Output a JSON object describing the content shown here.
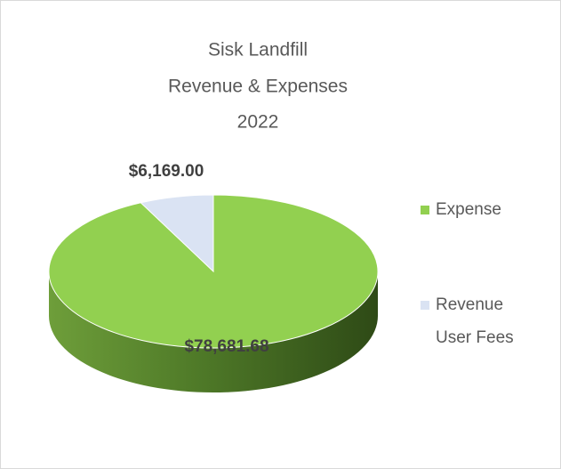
{
  "chart_data": {
    "type": "pie3d",
    "title": [
      "Sisk Landfill",
      "Revenue & Expenses",
      "2022"
    ],
    "categories": [
      "Expense",
      "Revenue User Fees"
    ],
    "values": [
      78681.68,
      6169
    ],
    "value_labels": [
      "$78,681.68",
      "$6,169.00"
    ],
    "colors": [
      "#92d050",
      "#dae3f3"
    ],
    "legend": "right"
  }
}
